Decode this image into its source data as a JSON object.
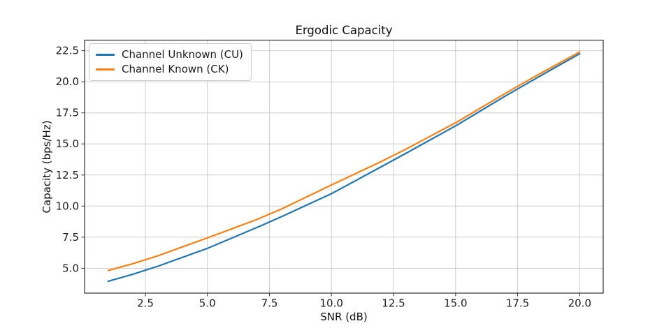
{
  "chart_data": {
    "type": "line",
    "title": "Ergodic Capacity",
    "xlabel": "SNR (dB)",
    "ylabel": "Capacity (bps/Hz)",
    "x": [
      1,
      2,
      3,
      4,
      5,
      6,
      7,
      8,
      9,
      10,
      11,
      12,
      13,
      14,
      15,
      16,
      17,
      18,
      19,
      20
    ],
    "series": [
      {
        "name": "Channel Unknown (CU)",
        "color": "#1f77b4",
        "values": [
          3.95,
          4.52,
          5.16,
          5.88,
          6.6,
          7.44,
          8.28,
          9.16,
          10.08,
          11.0,
          12.08,
          13.16,
          14.25,
          15.35,
          16.45,
          17.65,
          18.85,
          20.0,
          21.13,
          22.25
        ]
      },
      {
        "name": "Channel Known (CK)",
        "color": "#ff7f0e",
        "values": [
          4.82,
          5.37,
          6.0,
          6.72,
          7.44,
          8.18,
          8.93,
          9.78,
          10.74,
          11.7,
          12.64,
          13.58,
          14.58,
          15.64,
          16.7,
          17.88,
          19.06,
          20.2,
          21.3,
          22.4
        ]
      }
    ],
    "xticks": {
      "values": [
        2.5,
        5,
        7.5,
        10,
        12.5,
        15,
        17.5,
        20
      ],
      "labels": [
        "2.5",
        "5.0",
        "7.5",
        "10.0",
        "12.5",
        "15.0",
        "17.5",
        "20.0"
      ]
    },
    "yticks": {
      "values": [
        5,
        7.5,
        10,
        12.5,
        15,
        17.5,
        20,
        22.5
      ],
      "labels": [
        "5.0",
        "7.5",
        "10.0",
        "12.5",
        "15.0",
        "17.5",
        "20.0",
        "22.5"
      ]
    },
    "xlim": [
      0.05,
      20.95
    ],
    "ylim": [
      3.0,
      23.35
    ],
    "grid": true,
    "legend_position": "upper left"
  }
}
